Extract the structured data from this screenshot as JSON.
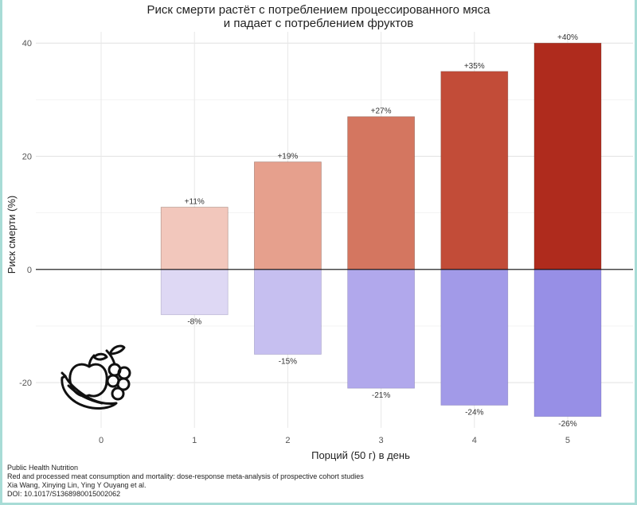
{
  "chart_data": {
    "type": "bar",
    "title_lines": [
      "Риск смерти растёт с потреблением процессированного мяса",
      "и падает с потреблением фруктов"
    ],
    "xlabel": "Порций (50 г) в день",
    "ylabel": "Риск смерти (%)",
    "x_ticks": [
      "0",
      "1",
      "2",
      "3",
      "4",
      "5"
    ],
    "y_ticks": [
      -20,
      0,
      20,
      40
    ],
    "ylim": [
      -28,
      42
    ],
    "xlim": [
      -0.7,
      5.7
    ],
    "grid": true,
    "zero_line": true,
    "series": [
      {
        "values": [
          {
            "x": 1,
            "y": 11,
            "label": "+11%",
            "color": "#f2c7bc"
          },
          {
            "x": 2,
            "y": 19,
            "label": "+19%",
            "color": "#e6a08d"
          },
          {
            "x": 3,
            "y": 27,
            "label": "+27%",
            "color": "#d47660"
          },
          {
            "x": 4,
            "y": 35,
            "label": "+35%",
            "color": "#c24c38"
          },
          {
            "x": 5,
            "y": 40,
            "label": "+40%",
            "color": "#af2b1d"
          }
        ]
      },
      {
        "values": [
          {
            "x": 1,
            "y": -8,
            "label": "-8%",
            "color": "#ded8f4"
          },
          {
            "x": 2,
            "y": -15,
            "label": "-15%",
            "color": "#c6bff0"
          },
          {
            "x": 3,
            "y": -21,
            "label": "-21%",
            "color": "#b1a8ec"
          },
          {
            "x": 4,
            "y": -24,
            "label": "-24%",
            "color": "#a29ae8"
          },
          {
            "x": 5,
            "y": -26,
            "label": "-26%",
            "color": "#978fe6"
          }
        ]
      }
    ]
  },
  "icons": {
    "fruit": "fruit-icon"
  },
  "source": {
    "journal": "Public Health Nutrition",
    "article": "Red and processed meat consumption and mortality: dose-response meta-analysis of prospective cohort studies",
    "authors": "Xia Wang, Xinying Lin, Ying Y Ouyang et al.",
    "doi": "DOI: 10.1017/S1368980015002062"
  }
}
